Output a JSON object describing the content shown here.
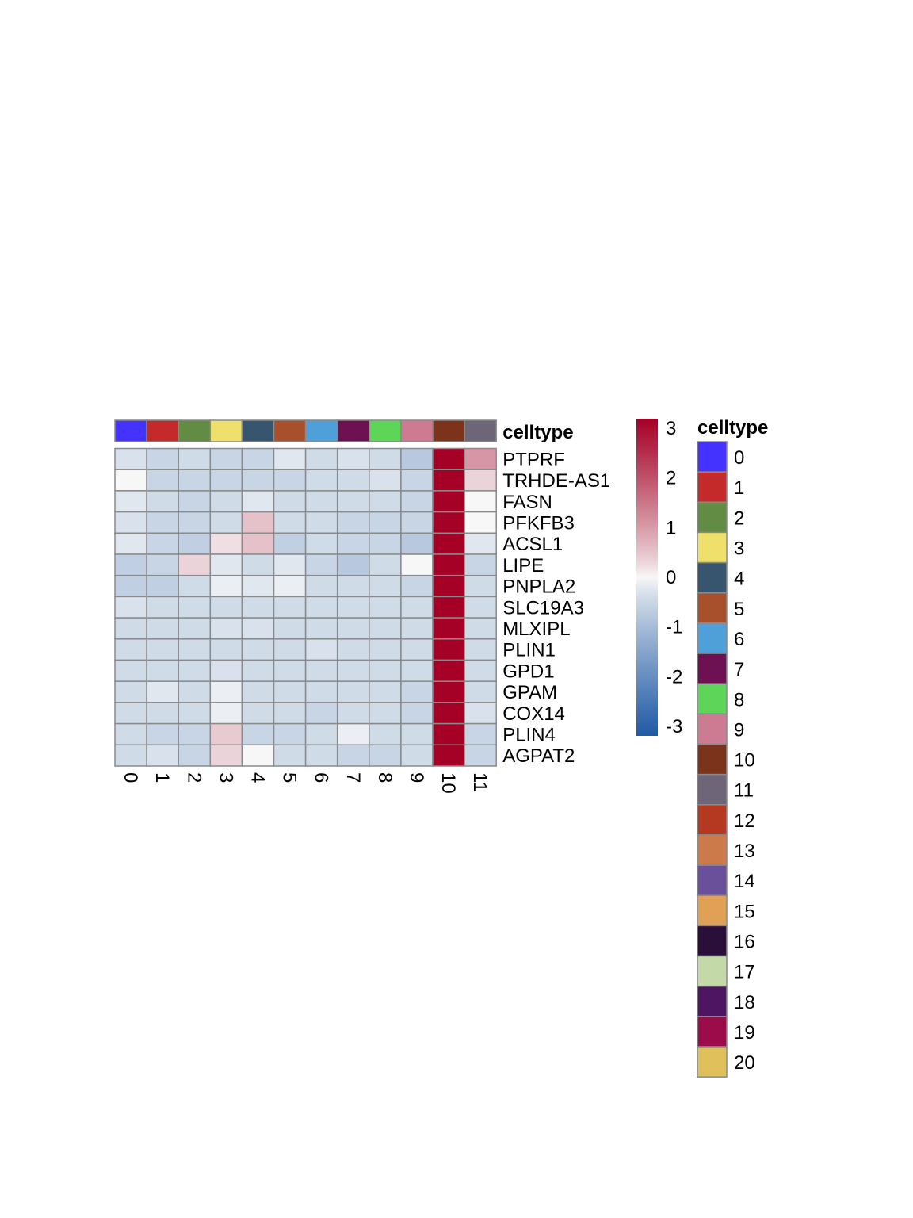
{
  "chart_data": {
    "type": "heatmap",
    "columns": [
      "0",
      "1",
      "2",
      "3",
      "4",
      "5",
      "6",
      "7",
      "8",
      "9",
      "10",
      "11"
    ],
    "rows": [
      "PTPRF",
      "TRHDE-AS1",
      "FASN",
      "PFKFB3",
      "ACSL1",
      "LIPE",
      "PNPLA2",
      "SLC19A3",
      "MLXIPL",
      "PLIN1",
      "GPD1",
      "GPAM",
      "COX14",
      "PLIN4",
      "AGPAT2"
    ],
    "values": [
      [
        -0.3,
        -0.5,
        -0.4,
        -0.5,
        -0.5,
        -0.2,
        -0.4,
        -0.3,
        -0.4,
        -0.7,
        3.0,
        1.0
      ],
      [
        0.0,
        -0.5,
        -0.5,
        -0.5,
        -0.5,
        -0.5,
        -0.4,
        -0.4,
        -0.3,
        -0.5,
        3.0,
        0.3
      ],
      [
        -0.2,
        -0.4,
        -0.5,
        -0.4,
        -0.2,
        -0.4,
        -0.4,
        -0.4,
        -0.4,
        -0.5,
        3.0,
        0.0
      ],
      [
        -0.3,
        -0.5,
        -0.5,
        -0.4,
        0.5,
        -0.4,
        -0.4,
        -0.5,
        -0.5,
        -0.5,
        3.0,
        0.0
      ],
      [
        -0.2,
        -0.5,
        -0.6,
        0.2,
        0.5,
        -0.6,
        -0.4,
        -0.5,
        -0.5,
        -0.7,
        3.0,
        -0.2
      ],
      [
        -0.6,
        -0.5,
        0.3,
        -0.2,
        -0.4,
        -0.2,
        -0.5,
        -0.7,
        -0.4,
        0.0,
        3.0,
        -0.5
      ],
      [
        -0.6,
        -0.6,
        -0.4,
        -0.1,
        -0.2,
        -0.1,
        -0.4,
        -0.4,
        -0.4,
        -0.5,
        3.0,
        -0.4
      ],
      [
        -0.3,
        -0.4,
        -0.4,
        -0.4,
        -0.4,
        -0.4,
        -0.4,
        -0.4,
        -0.4,
        -0.4,
        3.0,
        -0.4
      ],
      [
        -0.4,
        -0.4,
        -0.4,
        -0.3,
        -0.3,
        -0.4,
        -0.4,
        -0.4,
        -0.4,
        -0.4,
        3.0,
        -0.4
      ],
      [
        -0.4,
        -0.4,
        -0.4,
        -0.4,
        -0.4,
        -0.4,
        -0.3,
        -0.4,
        -0.4,
        -0.4,
        3.0,
        -0.4
      ],
      [
        -0.4,
        -0.4,
        -0.4,
        -0.3,
        -0.4,
        -0.4,
        -0.4,
        -0.4,
        -0.4,
        -0.4,
        3.0,
        -0.4
      ],
      [
        -0.4,
        -0.2,
        -0.4,
        -0.1,
        -0.4,
        -0.4,
        -0.4,
        -0.4,
        -0.4,
        -0.5,
        3.0,
        -0.4
      ],
      [
        -0.4,
        -0.4,
        -0.4,
        -0.1,
        -0.4,
        -0.4,
        -0.5,
        -0.4,
        -0.4,
        -0.5,
        3.0,
        -0.3
      ],
      [
        -0.4,
        -0.5,
        -0.5,
        0.4,
        -0.5,
        -0.5,
        -0.4,
        -0.1,
        -0.4,
        -0.4,
        3.0,
        -0.5
      ],
      [
        -0.4,
        -0.3,
        -0.5,
        0.3,
        0.0,
        -0.4,
        -0.4,
        -0.5,
        -0.5,
        -0.4,
        3.0,
        -0.5
      ]
    ],
    "annotation": {
      "label": "celltype",
      "column_groups": [
        "0",
        "1",
        "2",
        "3",
        "4",
        "5",
        "6",
        "7",
        "8",
        "9",
        "10",
        "11"
      ]
    },
    "color_scale": {
      "range": [
        -3,
        3
      ],
      "ticks": [
        "3",
        "2",
        "1",
        "0",
        "-1",
        "-2",
        "-3"
      ],
      "tick_values": [
        3,
        2,
        1,
        0,
        -1,
        -2,
        -3
      ],
      "low_color": "#1f5aa6",
      "mid_color": "#f7f7f7",
      "high_color": "#a50026"
    },
    "legend": {
      "title": "celltype",
      "position": "right",
      "entries": [
        {
          "label": "0",
          "color": "#4433ff"
        },
        {
          "label": "1",
          "color": "#c52a2a"
        },
        {
          "label": "2",
          "color": "#628b44"
        },
        {
          "label": "3",
          "color": "#efe06b"
        },
        {
          "label": "4",
          "color": "#37556e"
        },
        {
          "label": "5",
          "color": "#a8502c"
        },
        {
          "label": "6",
          "color": "#4f9fd8"
        },
        {
          "label": "7",
          "color": "#6d1153"
        },
        {
          "label": "8",
          "color": "#5dd558"
        },
        {
          "label": "9",
          "color": "#cd7b93"
        },
        {
          "label": "10",
          "color": "#7b331c"
        },
        {
          "label": "11",
          "color": "#6e6678"
        },
        {
          "label": "12",
          "color": "#b53920"
        },
        {
          "label": "13",
          "color": "#cc7a4a"
        },
        {
          "label": "14",
          "color": "#6a4f9a"
        },
        {
          "label": "15",
          "color": "#e0a157"
        },
        {
          "label": "16",
          "color": "#2a0f3a"
        },
        {
          "label": "17",
          "color": "#c4d9a8"
        },
        {
          "label": "18",
          "color": "#4e1562"
        },
        {
          "label": "19",
          "color": "#9c0b4a"
        },
        {
          "label": "20",
          "color": "#e0c05a"
        }
      ]
    }
  }
}
